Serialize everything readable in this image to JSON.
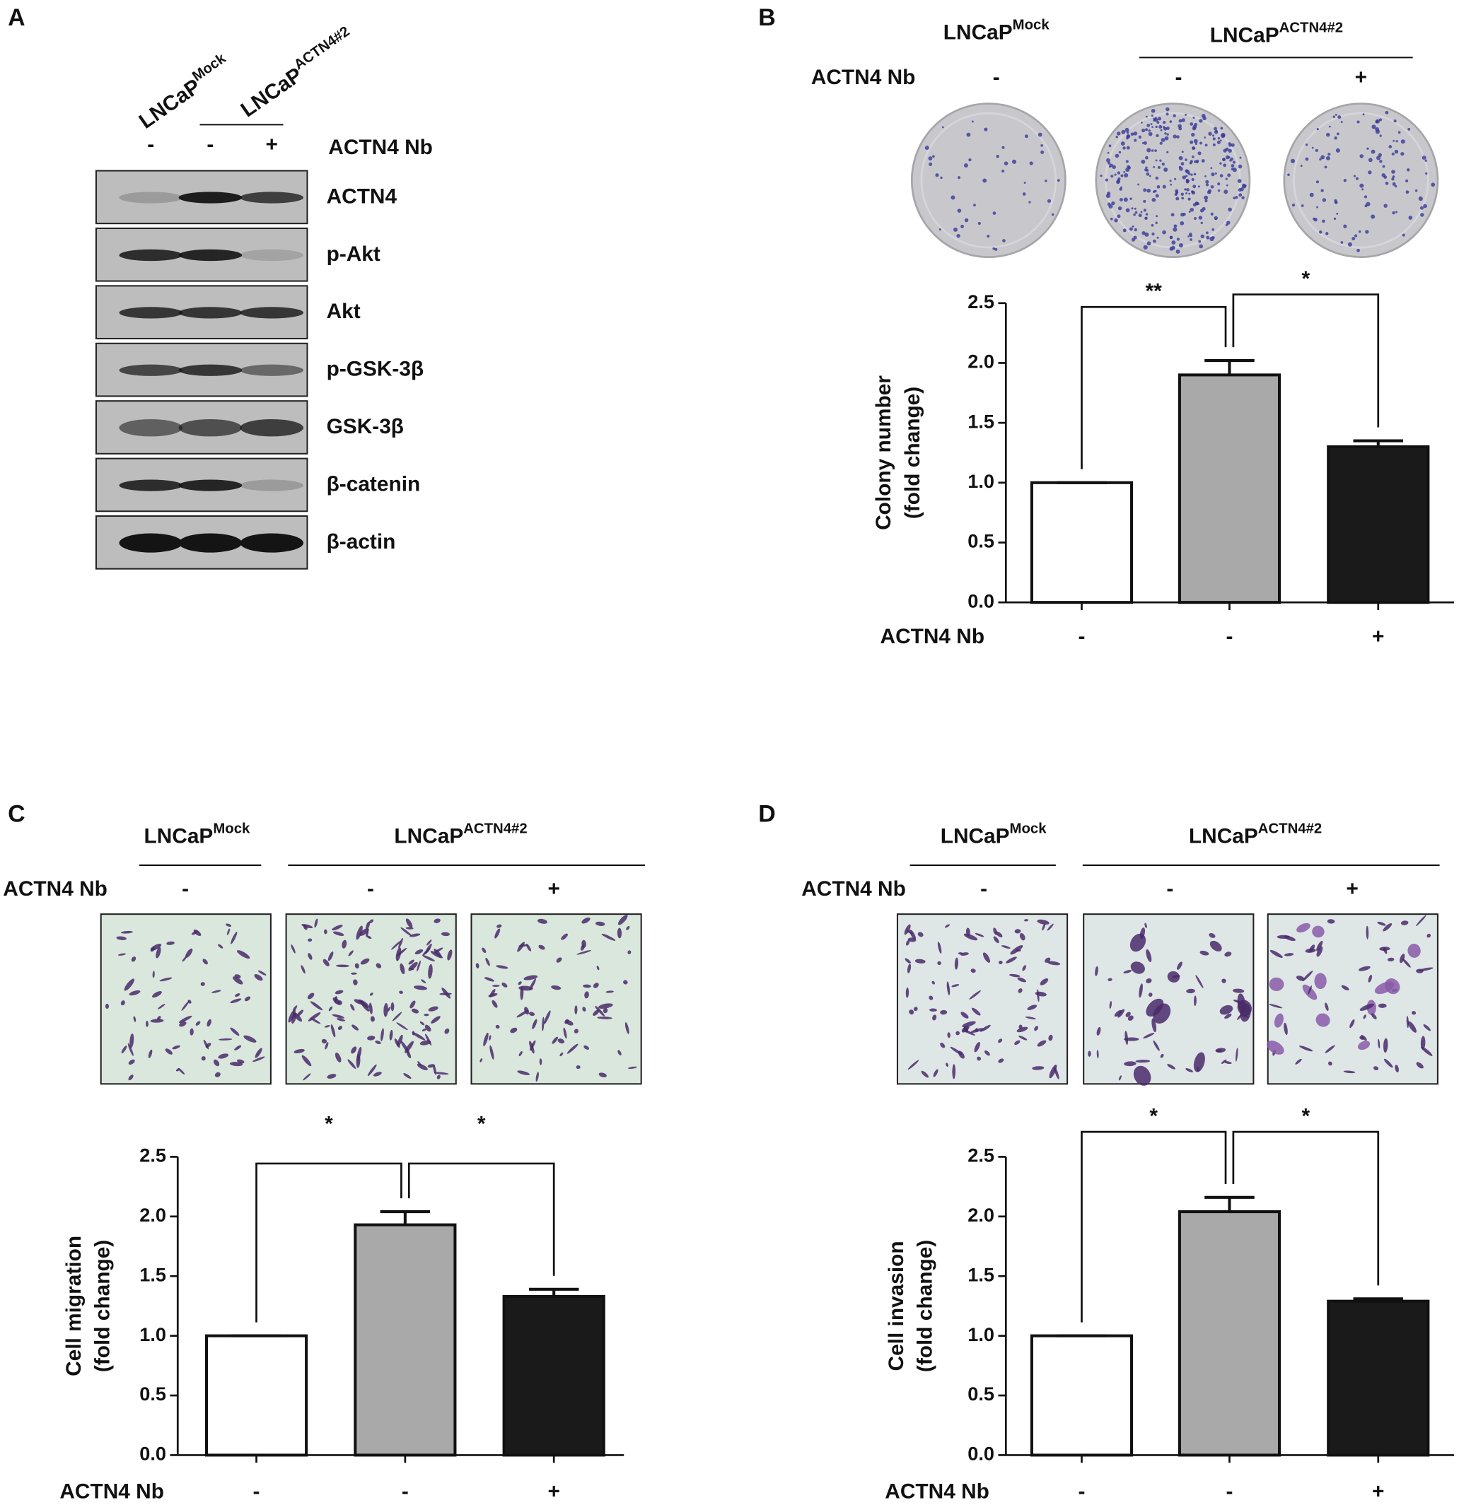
{
  "panel_a": {
    "label": "A",
    "lanes": [
      {
        "base": "LNCaP",
        "sup": "Mock"
      },
      {
        "base": "LNCaP",
        "sup": "ACTN4#2"
      }
    ],
    "treatment_label": "ACTN4 Nb",
    "treatment": [
      "-",
      "-",
      "+"
    ],
    "bands": [
      "ACTN4",
      "p-Akt",
      "Akt",
      "p-GSK-3β",
      "GSK-3β",
      "β-catenin",
      "β-actin"
    ]
  },
  "chart_data": [
    {
      "type": "bar",
      "panel_label": "B",
      "groups": [
        {
          "base": "LNCaP",
          "sup": "Mock"
        },
        {
          "base": "LNCaP",
          "sup": "ACTN4#2"
        }
      ],
      "treatment_label": "ACTN4 Nb",
      "treatment": [
        "-",
        "-",
        "+"
      ],
      "ylabel": [
        "Colony number",
        "(fold change)"
      ],
      "xlabel": "ACTN4 Nb",
      "categories": [
        "-",
        "-",
        "+"
      ],
      "values": [
        1.0,
        1.9,
        1.3
      ],
      "errors": [
        0,
        0.12,
        0.05
      ],
      "colors": [
        "#ffffff",
        "#a9a9a9",
        "#1a1a1a"
      ],
      "ylim": [
        0,
        2.5
      ],
      "yticks": [
        {
          "value": 0,
          "label": "0.0"
        },
        0.5,
        {
          "value": 1,
          "label": "1.0"
        },
        1.5,
        {
          "value": 2,
          "label": "2.0"
        },
        2.5
      ],
      "significance": [
        "**",
        "*"
      ]
    },
    {
      "type": "bar",
      "panel_label": "C",
      "groups": [
        {
          "base": "LNCaP",
          "sup": "Mock"
        },
        {
          "base": "LNCaP",
          "sup": "ACTN4#2"
        }
      ],
      "treatment_label": "ACTN4 Nb",
      "treatment": [
        "-",
        "-",
        "+"
      ],
      "ylabel": [
        "Cell migration",
        "(fold change)"
      ],
      "xlabel": "ACTN4 Nb",
      "categories": [
        "-",
        "-",
        "+"
      ],
      "values": [
        1.0,
        1.93,
        1.33
      ],
      "errors": [
        0,
        0.11,
        0.06
      ],
      "colors": [
        "#ffffff",
        "#a9a9a9",
        "#1a1a1a"
      ],
      "ylim": [
        0,
        2.5
      ],
      "yticks": [
        {
          "value": 0,
          "label": "0.0"
        },
        0.5,
        {
          "value": 1,
          "label": "1.0"
        },
        1.5,
        {
          "value": 2,
          "label": "2.0"
        },
        2.5
      ],
      "significance": [
        "*",
        "*"
      ]
    },
    {
      "type": "bar",
      "panel_label": "D",
      "groups": [
        {
          "base": "LNCaP",
          "sup": "Mock"
        },
        {
          "base": "LNCaP",
          "sup": "ACTN4#2"
        }
      ],
      "treatment_label": "ACTN4 Nb",
      "treatment": [
        "-",
        "-",
        "+"
      ],
      "ylabel": [
        "Cell invasion",
        "(fold change)"
      ],
      "xlabel": "ACTN4 Nb",
      "categories": [
        "-",
        "-",
        "+"
      ],
      "values": [
        1.0,
        2.04,
        1.29
      ],
      "errors": [
        0,
        0.12,
        0.02
      ],
      "colors": [
        "#ffffff",
        "#a9a9a9",
        "#1a1a1a"
      ],
      "ylim": [
        0,
        2.5
      ],
      "yticks": [
        {
          "value": 0,
          "label": "0.0"
        },
        0.5,
        {
          "value": 1,
          "label": "1.0"
        },
        1.5,
        {
          "value": 2,
          "label": "2.0"
        },
        2.5
      ],
      "significance": [
        "*",
        "*"
      ]
    }
  ]
}
